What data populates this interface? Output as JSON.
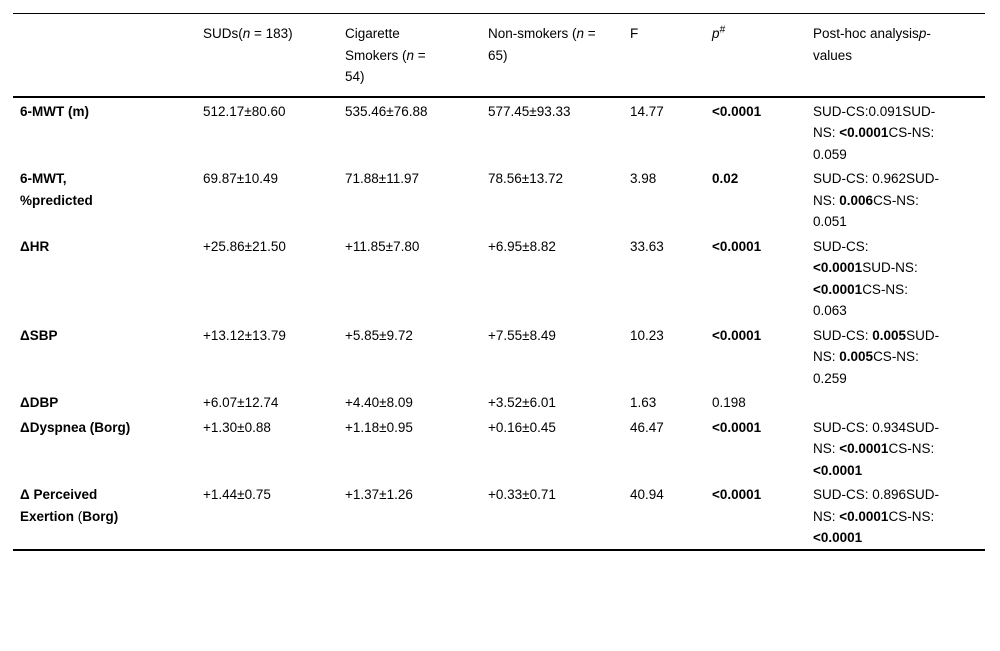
{
  "table": {
    "name": "six-minute-walk-test-comparison-table",
    "text_color": "#000000",
    "background_color": "#ffffff",
    "headers": [
      {
        "segments": []
      },
      {
        "segments": [
          {
            "t": "SUDs("
          },
          {
            "t": "n",
            "i": true
          },
          {
            "t": " = 183)"
          }
        ]
      },
      {
        "segments": [
          {
            "t": "Cigarette Smokers ("
          },
          {
            "t": "n",
            "i": true
          },
          {
            "t": " = 54)"
          }
        ]
      },
      {
        "segments": [
          {
            "t": "Non-smokers ("
          },
          {
            "t": "n",
            "i": true
          },
          {
            "t": " = 65)"
          }
        ]
      },
      {
        "segments": [
          {
            "t": "F"
          }
        ]
      },
      {
        "segments": [
          {
            "t": "p",
            "i": true
          },
          {
            "t": "#",
            "i": true,
            "sup": true
          }
        ]
      },
      {
        "segments": [
          {
            "t": "Post-hoc analysis"
          },
          {
            "t": "p",
            "i": true
          },
          {
            "t": "-values"
          }
        ]
      }
    ],
    "rows": [
      {
        "cells": [
          [
            {
              "t": "6-MWT (m)",
              "b": true
            }
          ],
          [
            {
              "t": "512.17±80.60"
            }
          ],
          [
            {
              "t": "535.46±76.88"
            }
          ],
          [
            {
              "t": "577.45±93.33"
            }
          ],
          [
            {
              "t": "14.77"
            }
          ],
          [
            {
              "t": "<0.0001",
              "b": true
            }
          ],
          [
            {
              "t": "SUD-CS:0.091SUD-NS: "
            },
            {
              "t": "<0.0001",
              "b": true
            },
            {
              "t": "CS-NS: 0.059"
            }
          ]
        ]
      },
      {
        "cells": [
          [
            {
              "t": "6-MWT, %predicted",
              "b": true
            }
          ],
          [
            {
              "t": "69.87±10.49"
            }
          ],
          [
            {
              "t": "71.88±11.97"
            }
          ],
          [
            {
              "t": "78.56±13.72"
            }
          ],
          [
            {
              "t": "3.98"
            }
          ],
          [
            {
              "t": "0.02",
              "b": true
            }
          ],
          [
            {
              "t": "SUD-CS: 0.962SUD-NS: "
            },
            {
              "t": "0.006",
              "b": true
            },
            {
              "t": "CS-NS: 0.051"
            }
          ]
        ]
      },
      {
        "cells": [
          [
            {
              "t": "ΔHR",
              "b": true
            }
          ],
          [
            {
              "t": "+25.86±21.50"
            }
          ],
          [
            {
              "t": "+11.85±7.80"
            }
          ],
          [
            {
              "t": "+6.95±8.82"
            }
          ],
          [
            {
              "t": "33.63"
            }
          ],
          [
            {
              "t": "<0.0001",
              "b": true
            }
          ],
          [
            {
              "t": "SUD-CS: "
            },
            {
              "t": "<0.0001",
              "b": true
            },
            {
              "t": "SUD-NS: "
            },
            {
              "t": "<0.0001",
              "b": true
            },
            {
              "t": "CS-NS: 0.063"
            }
          ]
        ]
      },
      {
        "cells": [
          [
            {
              "t": "ΔSBP",
              "b": true
            }
          ],
          [
            {
              "t": "+13.12±13.79"
            }
          ],
          [
            {
              "t": "+5.85±9.72"
            }
          ],
          [
            {
              "t": "+7.55±8.49"
            }
          ],
          [
            {
              "t": "10.23"
            }
          ],
          [
            {
              "t": "<0.0001",
              "b": true
            }
          ],
          [
            {
              "t": "SUD-CS: "
            },
            {
              "t": "0.005",
              "b": true
            },
            {
              "t": "SUD-NS: "
            },
            {
              "t": "0.005",
              "b": true
            },
            {
              "t": "CS-NS: 0.259"
            }
          ]
        ]
      },
      {
        "cells": [
          [
            {
              "t": "ΔDBP",
              "b": true
            }
          ],
          [
            {
              "t": "+6.07±12.74"
            }
          ],
          [
            {
              "t": "+4.40±8.09"
            }
          ],
          [
            {
              "t": "+3.52±6.01"
            }
          ],
          [
            {
              "t": "1.63"
            }
          ],
          [
            {
              "t": "0.198"
            }
          ],
          []
        ]
      },
      {
        "cells": [
          [
            {
              "t": "ΔDyspnea (Borg)",
              "b": true
            }
          ],
          [
            {
              "t": "+1.30±0.88"
            }
          ],
          [
            {
              "t": "+1.18±0.95"
            }
          ],
          [
            {
              "t": "+0.16±0.45"
            }
          ],
          [
            {
              "t": "46.47"
            }
          ],
          [
            {
              "t": "<0.0001",
              "b": true
            }
          ],
          [
            {
              "t": "SUD-CS: 0.934SUD-NS: "
            },
            {
              "t": "<0.0001",
              "b": true
            },
            {
              "t": "CS-NS: "
            },
            {
              "t": "<0.0001",
              "b": true
            }
          ]
        ]
      },
      {
        "cells": [
          [
            {
              "t": "Δ Perceived Exertion ",
              "b": true
            },
            {
              "t": "("
            },
            {
              "t": "Borg)",
              "b": true
            }
          ],
          [
            {
              "t": "+1.44±0.75"
            }
          ],
          [
            {
              "t": "+1.37±1.26"
            }
          ],
          [
            {
              "t": "+0.33±0.71"
            }
          ],
          [
            {
              "t": "40.94"
            }
          ],
          [
            {
              "t": "<0.0001",
              "b": true
            }
          ],
          [
            {
              "t": "SUD-CS: 0.896SUD-NS: "
            },
            {
              "t": "<0.0001",
              "b": true
            },
            {
              "t": "CS-NS: "
            },
            {
              "t": "<0.0001",
              "b": true
            }
          ]
        ]
      }
    ]
  }
}
